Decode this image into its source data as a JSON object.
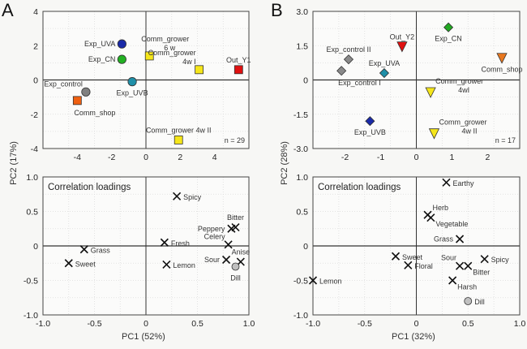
{
  "figure": {
    "panels": [
      {
        "letter": "A",
        "ylabel": "PC2 (17%)",
        "xlabel": "PC1 (52%)"
      },
      {
        "letter": "B",
        "ylabel": "PC2 (28%)",
        "xlabel": "PC1 (32%)"
      }
    ]
  },
  "chart_data": [
    {
      "id": "A-scores",
      "type": "scatter",
      "title": "",
      "xlim": [
        -6,
        6
      ],
      "ylim": [
        -4,
        4
      ],
      "xticks": [
        -4,
        -2,
        0,
        2,
        4
      ],
      "yticks": [
        -4,
        -2,
        0,
        2,
        4
      ],
      "xtick_labels": [
        "-4",
        "-2",
        "0",
        "2",
        "4"
      ],
      "ytick_labels": [
        "-4",
        "-2",
        "0",
        "2",
        "4"
      ],
      "grid": true,
      "annotation": "n = 29",
      "points": [
        {
          "label": "Exp_UVA",
          "x": -1.4,
          "y": 2.1,
          "marker": "circle",
          "color": "#1a2aa8",
          "label_pos": "left"
        },
        {
          "label": "Exp_CN",
          "x": -1.4,
          "y": 1.2,
          "marker": "circle",
          "color": "#22b022",
          "label_pos": "left"
        },
        {
          "label": "Exp_UVB",
          "x": -0.8,
          "y": -0.1,
          "marker": "circle",
          "color": "#1f8fa8",
          "label_pos": "below"
        },
        {
          "label": "Exp_control",
          "x": -3.5,
          "y": -0.7,
          "marker": "circle",
          "color": "#808080",
          "label_pos": "upper-left"
        },
        {
          "label": "Comm_shop",
          "x": -4.0,
          "y": -1.2,
          "marker": "square",
          "color": "#f06010",
          "label_pos": "below-right"
        },
        {
          "label": "Comm_grower\n6 w",
          "x": 0.2,
          "y": 1.4,
          "marker": "square",
          "color": "#f5e61a",
          "label_pos": "above-right"
        },
        {
          "label": "Comm_grower\n4w I",
          "x": 3.1,
          "y": 0.6,
          "marker": "square",
          "color": "#f5e61a",
          "label_pos": "upper-left"
        },
        {
          "label": "Out_Y1",
          "x": 5.4,
          "y": 0.6,
          "marker": "square",
          "color": "#e01010",
          "label_pos": "above"
        },
        {
          "label": "Comm_grower 4w II",
          "x": 1.9,
          "y": -3.5,
          "marker": "square",
          "color": "#f5e61a",
          "label_pos": "above"
        }
      ]
    },
    {
      "id": "B-scores",
      "type": "scatter",
      "title": "",
      "xlim": [
        -2.9,
        2.9
      ],
      "ylim": [
        -3.0,
        3.0
      ],
      "xticks": [
        -2,
        -1,
        0,
        1,
        2
      ],
      "yticks": [
        -3.0,
        -1.5,
        0,
        1.5,
        3.0
      ],
      "xtick_labels": [
        "-2",
        "-1",
        "0",
        "1",
        "2"
      ],
      "ytick_labels": [
        "-3.0",
        "-1.5",
        "0",
        "1.5",
        "3.0"
      ],
      "grid": true,
      "annotation": "n = 17",
      "points": [
        {
          "label": "Exp_CN",
          "x": 0.9,
          "y": 2.3,
          "marker": "diamond",
          "color": "#22a822",
          "label_pos": "below"
        },
        {
          "label": "Out_Y2",
          "x": -0.4,
          "y": 1.45,
          "marker": "triangle-down",
          "color": "#e01010",
          "label_pos": "above"
        },
        {
          "label": "Exp_control II",
          "x": -1.9,
          "y": 0.9,
          "marker": "diamond",
          "color": "#8a8a8a",
          "label_pos": "above"
        },
        {
          "label": "Exp_control I",
          "x": -2.1,
          "y": 0.4,
          "marker": "diamond",
          "color": "#8a8a8a",
          "label_pos": "below-right"
        },
        {
          "label": "Exp_UVA",
          "x": -0.9,
          "y": 0.3,
          "marker": "diamond",
          "color": "#1f8fa8",
          "label_pos": "above"
        },
        {
          "label": "Comm_shop",
          "x": 2.4,
          "y": 0.95,
          "marker": "triangle-down",
          "color": "#e87820",
          "label_pos": "below"
        },
        {
          "label": "Comm_grower\n4wI",
          "x": 0.4,
          "y": -0.55,
          "marker": "triangle-down",
          "color": "#f5e61a",
          "label_pos": "upper-right"
        },
        {
          "label": "Exp_UVB",
          "x": -1.3,
          "y": -1.8,
          "marker": "diamond",
          "color": "#1a2aa8",
          "label_pos": "below"
        },
        {
          "label": "Comm_grower\n4w II",
          "x": 0.5,
          "y": -2.35,
          "marker": "triangle-down",
          "color": "#f5e61a",
          "label_pos": "upper-right"
        }
      ]
    },
    {
      "id": "A-loadings",
      "type": "scatter",
      "title": "Correlation loadings",
      "xlim": [
        -1.0,
        1.0
      ],
      "ylim": [
        -1.0,
        1.0
      ],
      "xticks": [
        -1.0,
        -0.5,
        0,
        0.5,
        1.0
      ],
      "yticks": [
        -1.0,
        -0.5,
        0,
        0.5,
        1.0
      ],
      "xtick_labels": [
        "-1.0",
        "-0.5",
        "0",
        "0.5",
        "1.0"
      ],
      "ytick_labels": [
        "-1.0",
        "-0.5",
        "0",
        "0.5",
        "1.0"
      ],
      "grid": true,
      "points": [
        {
          "label": "Spicy",
          "x": 0.3,
          "y": 0.72,
          "marker": "x",
          "label_pos": "right"
        },
        {
          "label": "Bitter",
          "x": 0.87,
          "y": 0.27,
          "marker": "x",
          "label_pos": "above"
        },
        {
          "label": "Peppery",
          "x": 0.83,
          "y": 0.25,
          "marker": "x",
          "label_pos": "left"
        },
        {
          "label": "Celery",
          "x": 0.8,
          "y": 0.02,
          "marker": "x",
          "label_pos": "upper-left"
        },
        {
          "label": "Fresh",
          "x": 0.18,
          "y": 0.05,
          "marker": "x",
          "label_pos": "right"
        },
        {
          "label": "Grass",
          "x": -0.6,
          "y": -0.05,
          "marker": "x",
          "label_pos": "right"
        },
        {
          "label": "Sweet",
          "x": -0.75,
          "y": -0.25,
          "marker": "x",
          "label_pos": "right"
        },
        {
          "label": "Lemon",
          "x": 0.2,
          "y": -0.27,
          "marker": "x",
          "label_pos": "right"
        },
        {
          "label": "Sour",
          "x": 0.78,
          "y": -0.2,
          "marker": "x",
          "label_pos": "left"
        },
        {
          "label": "Anise",
          "x": 0.92,
          "y": -0.23,
          "marker": "x",
          "label_pos": "above"
        },
        {
          "label": "Dill",
          "x": 0.87,
          "y": -0.3,
          "marker": "circle",
          "color": "#c0c0c0",
          "label_pos": "below"
        }
      ]
    },
    {
      "id": "B-loadings",
      "type": "scatter",
      "title": "Correlation loadings",
      "xlim": [
        -1.0,
        1.0
      ],
      "ylim": [
        -1.0,
        1.0
      ],
      "xticks": [
        -1.0,
        -0.5,
        0,
        0.5,
        1.0
      ],
      "yticks": [
        -1.0,
        -0.5,
        0,
        0.5,
        1.0
      ],
      "xtick_labels": [
        "-1.0",
        "-0.5",
        "0",
        "0.5",
        "1.0"
      ],
      "ytick_labels": [
        "-1.0",
        "-0.5",
        "0",
        "0.5",
        "1.0"
      ],
      "grid": true,
      "points": [
        {
          "label": "Earthy",
          "x": 0.29,
          "y": 0.92,
          "marker": "x",
          "label_pos": "right"
        },
        {
          "label": "Herb",
          "x": 0.11,
          "y": 0.45,
          "marker": "x",
          "label_pos": "upper-right"
        },
        {
          "label": "Vegetable",
          "x": 0.14,
          "y": 0.41,
          "marker": "x",
          "label_pos": "lower-right"
        },
        {
          "label": "Grass",
          "x": 0.42,
          "y": 0.1,
          "marker": "x",
          "label_pos": "left"
        },
        {
          "label": "Sweet",
          "x": -0.2,
          "y": -0.15,
          "marker": "x",
          "label_pos": "right"
        },
        {
          "label": "Floral",
          "x": -0.08,
          "y": -0.28,
          "marker": "x",
          "label_pos": "right"
        },
        {
          "label": "Sour",
          "x": 0.42,
          "y": -0.29,
          "marker": "x",
          "label_pos": "upper-left"
        },
        {
          "label": "Bitter",
          "x": 0.5,
          "y": -0.29,
          "marker": "x",
          "label_pos": "lower-right"
        },
        {
          "label": "Spicy",
          "x": 0.66,
          "y": -0.19,
          "marker": "x",
          "label_pos": "right"
        },
        {
          "label": "Harsh",
          "x": 0.35,
          "y": -0.5,
          "marker": "x",
          "label_pos": "lower-right"
        },
        {
          "label": "Lemon",
          "x": -1.0,
          "y": -0.5,
          "marker": "x",
          "label_pos": "right"
        },
        {
          "label": "Dill",
          "x": 0.5,
          "y": -0.8,
          "marker": "circle",
          "color": "#c0c0c0",
          "label_pos": "right"
        }
      ]
    }
  ]
}
